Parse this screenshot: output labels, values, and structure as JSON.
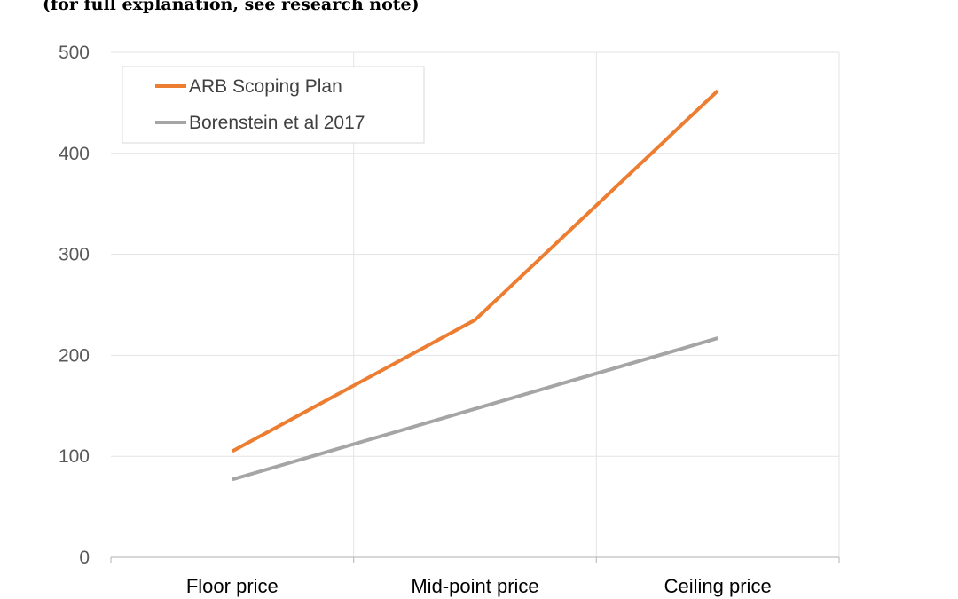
{
  "header": {
    "subtitle": "(for full explanation, see research note)"
  },
  "chart_data": {
    "type": "line",
    "categories": [
      "Floor price",
      "Mid-point price",
      "Ceiling price"
    ],
    "series": [
      {
        "name": "ARB Scoping Plan",
        "values": [
          105,
          235,
          462
        ],
        "color": "#ED7D31"
      },
      {
        "name": "Borenstein et al 2017",
        "values": [
          77,
          147,
          217
        ],
        "color": "#A5A5A5"
      }
    ],
    "yticks": [
      0,
      100,
      200,
      300,
      400,
      500
    ],
    "ylim": [
      0,
      500
    ],
    "grid": true,
    "legend_position": "top-left"
  }
}
